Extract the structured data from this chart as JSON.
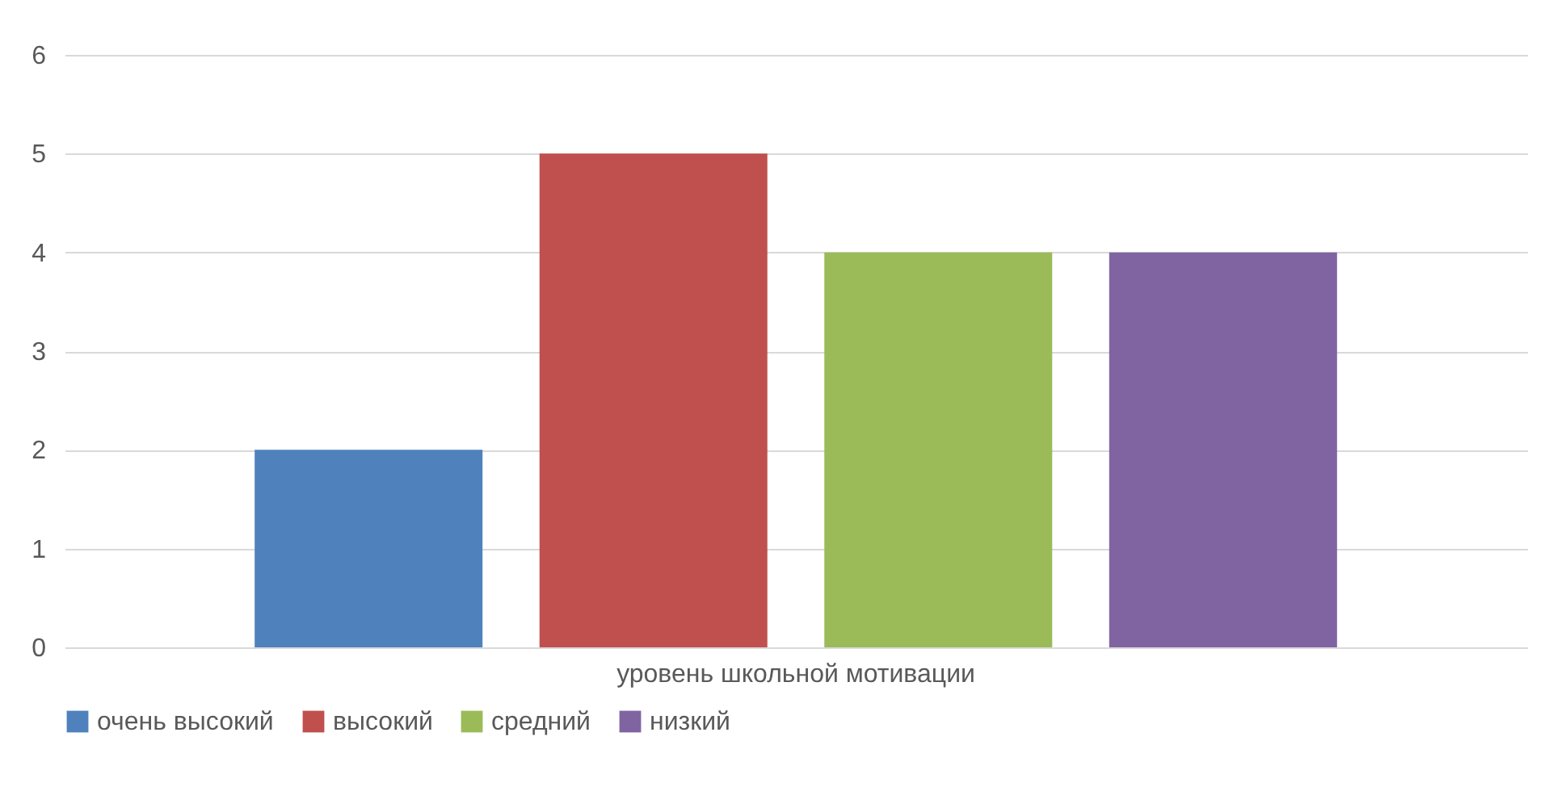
{
  "chart_data": {
    "type": "bar",
    "categories": [
      "уровень школьной мотивации"
    ],
    "series": [
      {
        "name": "очень высокий",
        "color": "#4f81bd",
        "values": [
          2
        ]
      },
      {
        "name": "высокий",
        "color": "#c0504d",
        "values": [
          5
        ]
      },
      {
        "name": "средний",
        "color": "#9bbb59",
        "values": [
          4
        ]
      },
      {
        "name": "низкий",
        "color": "#8064a2",
        "values": [
          4
        ]
      }
    ],
    "ylim": [
      0,
      6
    ],
    "yticks": [
      0,
      1,
      2,
      3,
      4,
      5,
      6
    ],
    "grid": "y",
    "legend": "bottom"
  }
}
